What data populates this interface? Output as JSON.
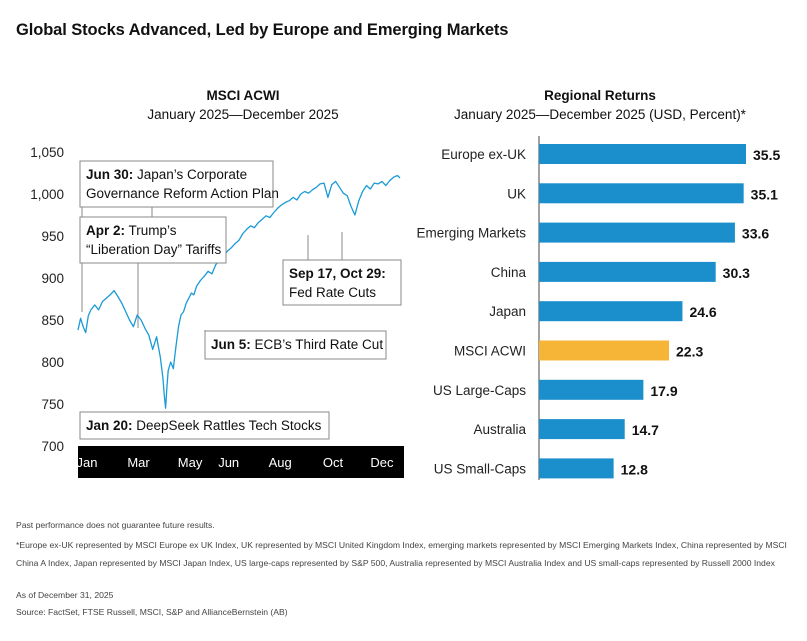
{
  "title": "Global Stocks Advanced, Led by Europe and Emerging Markets",
  "left_chart": {
    "title": "MSCI ACWI",
    "subtitle": "January 2025—December 2025",
    "annotations": [
      {
        "bold": "Jun 30:",
        "text": " Japan’s Corporate",
        "text2": "Governance Reform Action Plan"
      },
      {
        "bold": "Apr 2:",
        "text": " Trump’s",
        "text2": "“Liberation Day” Tariffs"
      },
      {
        "bold": "Sep 17, Oct 29:",
        "text": "",
        "text2": "Fed Rate Cuts"
      },
      {
        "bold": "Jun 5:",
        "text": " ECB’s Third Rate Cut",
        "text2": ""
      },
      {
        "bold": "Jan 20:",
        "text": " DeepSeek Rattles Tech Stocks",
        "text2": ""
      }
    ]
  },
  "right_chart": {
    "title": "Regional Returns",
    "subtitle": "January 2025—December 2025 (USD, Percent)*"
  },
  "colors": {
    "line": "#1a9ad6",
    "bar": "#1a8fcc",
    "highlight": "#f7b538",
    "axis_band": "#000000"
  },
  "chart_data": [
    {
      "type": "line",
      "title": "MSCI ACWI",
      "subtitle": "January 2025—December 2025",
      "ylim": [
        700,
        1050
      ],
      "yticks": [
        1050,
        1000,
        950,
        900,
        850,
        800,
        750,
        700
      ],
      "ytick_labels": [
        "1,050",
        "1,000",
        "950",
        "900",
        "850",
        "800",
        "750",
        "700"
      ],
      "xtick_labels": [
        "Jan",
        "Mar",
        "May",
        "Jun",
        "Aug",
        "Oct",
        "Dec"
      ],
      "x_unit": "trading days (0–250)",
      "xtick_positions": [
        7,
        47,
        87,
        117,
        157,
        198,
        236
      ],
      "series": [
        {
          "name": "MSCI ACWI",
          "x": [
            0,
            2,
            4,
            6,
            8,
            10,
            13,
            16,
            19,
            22,
            25,
            28,
            31,
            34,
            37,
            40,
            43,
            46,
            49,
            52,
            55,
            58,
            61,
            64,
            66,
            67,
            68,
            69,
            70,
            72,
            74,
            76,
            78,
            80,
            82,
            84,
            86,
            88,
            90,
            92,
            95,
            98,
            101,
            104,
            107,
            110,
            113,
            116,
            119,
            122,
            125,
            128,
            131,
            134,
            137,
            140,
            143,
            146,
            149,
            152,
            155,
            158,
            161,
            164,
            167,
            170,
            173,
            176,
            179,
            182,
            185,
            188,
            191,
            194,
            197,
            200,
            203,
            206,
            209,
            212,
            215,
            218,
            221,
            224,
            227,
            230,
            233,
            236,
            239,
            242,
            245,
            248,
            250
          ],
          "y": [
            838,
            852,
            842,
            835,
            855,
            862,
            868,
            862,
            872,
            876,
            880,
            885,
            878,
            870,
            860,
            850,
            842,
            856,
            850,
            840,
            832,
            815,
            830,
            805,
            780,
            760,
            745,
            770,
            790,
            800,
            792,
            818,
            842,
            856,
            860,
            870,
            876,
            882,
            880,
            890,
            897,
            902,
            908,
            905,
            916,
            921,
            925,
            932,
            936,
            941,
            945,
            953,
            958,
            962,
            960,
            966,
            970,
            974,
            972,
            978,
            983,
            987,
            990,
            992,
            996,
            993,
            1000,
            1003,
            1001,
            1005,
            1008,
            1012,
            1013,
            996,
            1011,
            1015,
            1008,
            1001,
            998,
            985,
            975,
            992,
            1003,
            1010,
            1006,
            1013,
            1012,
            1015,
            1010,
            1016,
            1020,
            1022,
            1019
          ]
        }
      ],
      "annotations": [
        "Jun 30: Japan’s Corporate Governance Reform Action Plan",
        "Apr 2: Trump’s “Liberation Day” Tariffs",
        "Sep 17, Oct 29: Fed Rate Cuts",
        "Jun 5: ECB’s Third Rate Cut",
        "Jan 20: DeepSeek Rattles Tech Stocks"
      ]
    },
    {
      "type": "bar",
      "orientation": "horizontal",
      "title": "Regional Returns",
      "subtitle": "January 2025—December 2025 (USD, Percent)*",
      "categories": [
        "Europe ex-UK",
        "UK",
        "Emerging Markets",
        "China",
        "Japan",
        "MSCI ACWI",
        "US Large-Caps",
        "Australia",
        "US Small-Caps"
      ],
      "values": [
        35.5,
        35.1,
        33.6,
        30.3,
        24.6,
        22.3,
        17.9,
        14.7,
        12.8
      ],
      "value_labels": [
        "35.5",
        "35.1",
        "33.6",
        "30.3",
        "24.6",
        "22.3",
        "17.9",
        "14.7",
        "12.8"
      ],
      "highlight": "MSCI ACWI",
      "xlim": [
        0,
        40
      ]
    }
  ],
  "footnotes": [
    "Past performance does not guarantee future results.",
    "*Europe ex-UK represented by MSCI Europe ex UK Index, UK represented by MSCI United Kingdom Index, emerging markets represented by MSCI Emerging Markets Index, China represented by MSCI China A Index, Japan represented by MSCI Japan Index, US large-caps represented by S&P 500, Australia represented by MSCI Australia Index and US small-caps represented by Russell 2000 Index",
    "As of December 31, 2025",
    "Source: FactSet, FTSE Russell, MSCI, S&P and AllianceBernstein (AB)"
  ]
}
